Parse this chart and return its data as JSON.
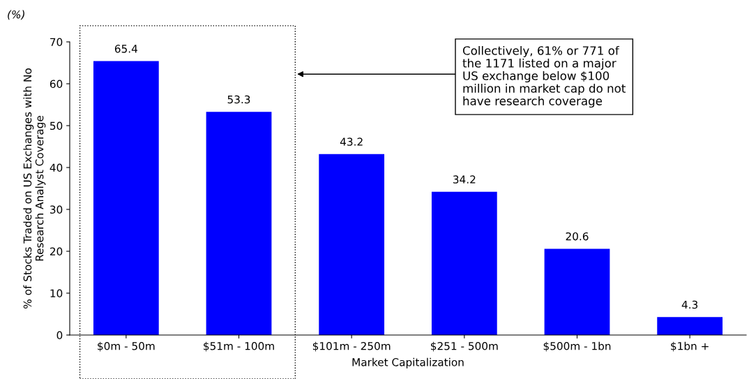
{
  "chart_data": {
    "type": "bar",
    "categories": [
      "$0m - 50m",
      "$51m - 100m",
      "$101m - 250m",
      "$251 - 500m",
      "$500m - 1bn",
      "$1bn +"
    ],
    "values": [
      65.4,
      53.3,
      43.2,
      34.2,
      20.6,
      4.3
    ],
    "color": "#0000ff",
    "data_labels": true,
    "xlabel": "Market Capitalization",
    "ylabel": "% of Stocks Traded on US Exchanges with No\nResearch Analyst Coverage",
    "ylim": [
      0,
      70
    ],
    "yticks": [
      0,
      10,
      20,
      30,
      40,
      50,
      60,
      70
    ],
    "grid": false,
    "annotations": [
      "(%)",
      "Collectively, 61% or 771 of\nthe 1171 listed on a major\nUS exchange below $100\nmillion in market cap do not\nhave research coverage"
    ]
  }
}
